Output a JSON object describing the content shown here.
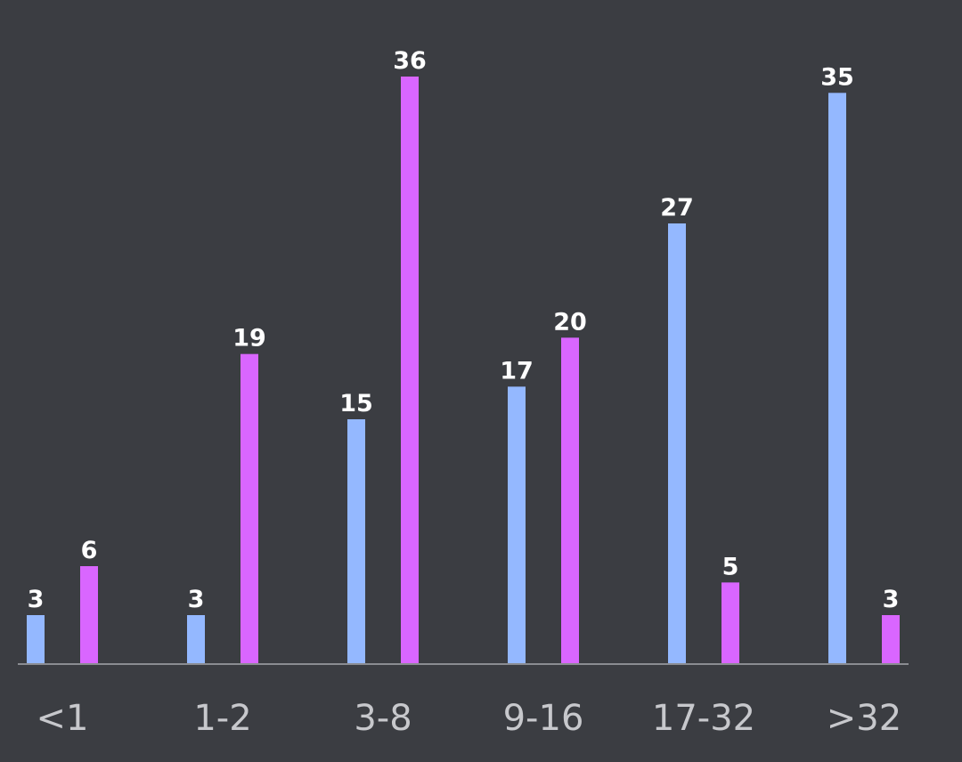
{
  "chart_data": {
    "type": "bar",
    "categories": [
      "<1",
      "1-2",
      "3-8",
      "9-16",
      "17-32",
      ">32"
    ],
    "series": [
      {
        "values": [
          3,
          3,
          15,
          17,
          27,
          35
        ],
        "color": "#94b8ff"
      },
      {
        "values": [
          6,
          19,
          36,
          20,
          5,
          3
        ],
        "color": "#d966ff"
      }
    ],
    "ylim": [
      0,
      36
    ],
    "grid": false,
    "legend": "none",
    "title": "",
    "xlabel": "",
    "ylabel": "",
    "colors": {
      "background": "#3b3d42",
      "axis": "#8a8c91",
      "tick_text": "#c7c8cc",
      "value_text": "#ffffff"
    }
  }
}
